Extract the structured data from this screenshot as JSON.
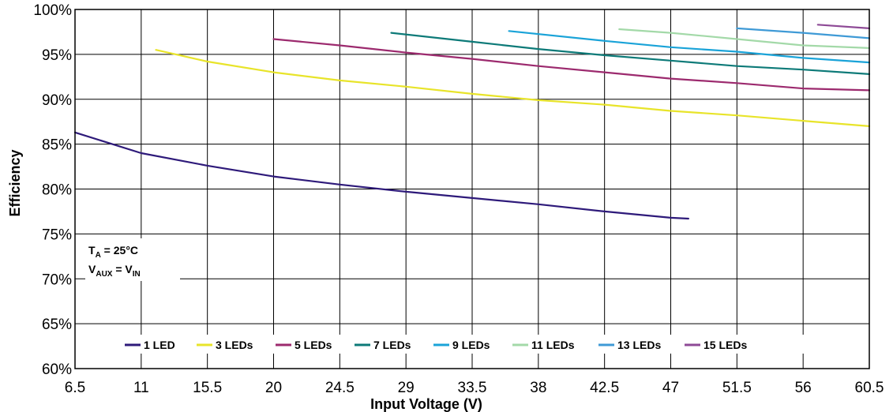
{
  "chart_data": {
    "type": "line",
    "xlabel": "Input Voltage (V)",
    "ylabel": "Efficiency",
    "xlim": [
      6.5,
      60.5
    ],
    "ylim": [
      60,
      100
    ],
    "x_ticks": [
      "6.5",
      "11",
      "15.5",
      "20",
      "24.5",
      "29",
      "33.5",
      "38",
      "42.5",
      "47",
      "51.5",
      "56",
      "60.5"
    ],
    "y_ticks": [
      "60%",
      "65%",
      "70%",
      "75%",
      "80%",
      "85%",
      "90%",
      "95%",
      "100%"
    ],
    "grid": true,
    "legend_position": "bottom-inside",
    "annotation": {
      "line1": {
        "main": "T",
        "sub": "A",
        "rest": " = 25°C"
      },
      "line2": {
        "main": "V",
        "sub": "AUX",
        "mid": " = V",
        "sub2": "IN"
      }
    },
    "series": [
      {
        "name": "1 LED",
        "color": "#2e1a7a",
        "points": [
          [
            6.5,
            86.3
          ],
          [
            11,
            84.0
          ],
          [
            15.5,
            82.6
          ],
          [
            20,
            81.4
          ],
          [
            24.5,
            80.5
          ],
          [
            29,
            79.7
          ],
          [
            33.5,
            79.0
          ],
          [
            38,
            78.3
          ],
          [
            42.5,
            77.5
          ],
          [
            47,
            76.8
          ],
          [
            48.2,
            76.7
          ]
        ]
      },
      {
        "name": "3 LEDs",
        "color": "#e8e42a",
        "points": [
          [
            12,
            95.5
          ],
          [
            15.5,
            94.2
          ],
          [
            20,
            93.0
          ],
          [
            24.5,
            92.1
          ],
          [
            29,
            91.4
          ],
          [
            33.5,
            90.6
          ],
          [
            38,
            89.9
          ],
          [
            42.5,
            89.4
          ],
          [
            47,
            88.7
          ],
          [
            51.5,
            88.2
          ],
          [
            56,
            87.6
          ],
          [
            60.5,
            87.0
          ]
        ]
      },
      {
        "name": "5 LEDs",
        "color": "#9c2a6e",
        "points": [
          [
            20,
            96.7
          ],
          [
            24.5,
            96.0
          ],
          [
            29,
            95.2
          ],
          [
            33.5,
            94.5
          ],
          [
            38,
            93.7
          ],
          [
            42.5,
            93.0
          ],
          [
            47,
            92.3
          ],
          [
            51.5,
            91.8
          ],
          [
            56,
            91.2
          ],
          [
            60.5,
            91.0
          ]
        ]
      },
      {
        "name": "7 LEDs",
        "color": "#0d7a78",
        "points": [
          [
            28,
            97.4
          ],
          [
            33.5,
            96.4
          ],
          [
            38,
            95.6
          ],
          [
            42.5,
            94.9
          ],
          [
            47,
            94.3
          ],
          [
            51.5,
            93.7
          ],
          [
            56,
            93.3
          ],
          [
            60.5,
            92.8
          ]
        ]
      },
      {
        "name": "9 LEDs",
        "color": "#1aa3d8",
        "points": [
          [
            36,
            97.6
          ],
          [
            42.5,
            96.5
          ],
          [
            47,
            95.8
          ],
          [
            51.5,
            95.3
          ],
          [
            56,
            94.6
          ],
          [
            60.5,
            94.1
          ]
        ]
      },
      {
        "name": "11 LEDs",
        "color": "#a3d9a8",
        "points": [
          [
            43.5,
            97.8
          ],
          [
            47,
            97.4
          ],
          [
            51.5,
            96.7
          ],
          [
            56,
            96.0
          ],
          [
            60.5,
            95.7
          ]
        ]
      },
      {
        "name": "13 LEDs",
        "color": "#3f9ad6",
        "points": [
          [
            51.5,
            97.9
          ],
          [
            56,
            97.4
          ],
          [
            60.5,
            96.8
          ]
        ]
      },
      {
        "name": "15 LEDs",
        "color": "#8e4a96",
        "points": [
          [
            57,
            98.3
          ],
          [
            60.5,
            97.9
          ]
        ]
      }
    ]
  }
}
